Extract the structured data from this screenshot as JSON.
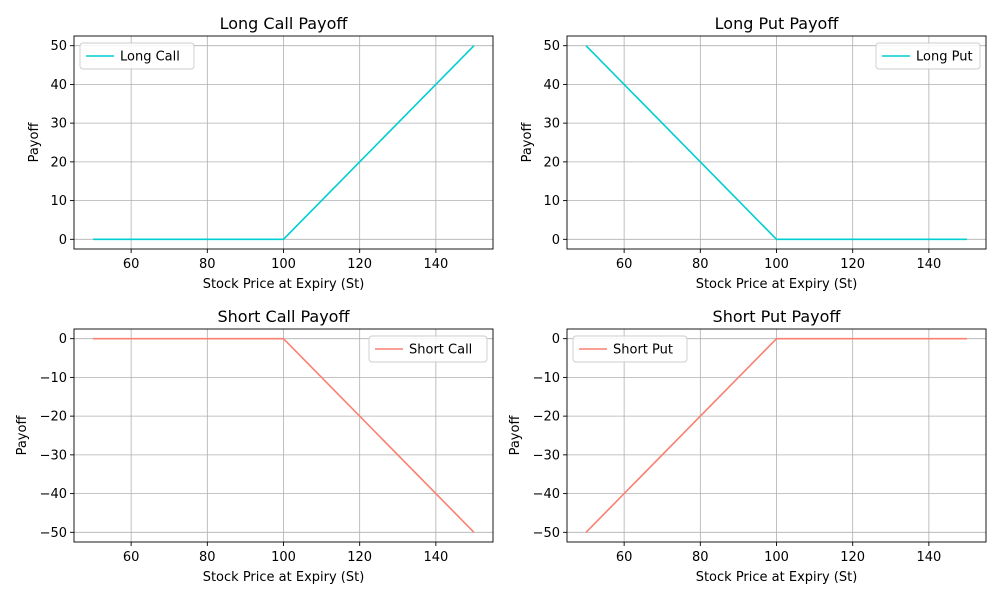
{
  "colors": {
    "long": "#00CED1",
    "short": "#FA8072",
    "grid": "#b0b0b0",
    "axes": "#000000"
  },
  "chart_data": [
    {
      "type": "line",
      "title": "Long Call Payoff",
      "xlabel": "Stock Price at Expiry (St)",
      "ylabel": "Payoff",
      "xlim": [
        45,
        155
      ],
      "ylim": [
        -2.5,
        52.5
      ],
      "xticks": [
        60,
        80,
        100,
        120,
        140
      ],
      "yticks": [
        0,
        10,
        20,
        30,
        40,
        50
      ],
      "grid": true,
      "legend_position": "upper left",
      "series": [
        {
          "name": "Long Call",
          "color": "#00CED1",
          "x": [
            50,
            100,
            150
          ],
          "y": [
            0,
            0,
            50
          ]
        }
      ]
    },
    {
      "type": "line",
      "title": "Long Put Payoff",
      "xlabel": "Stock Price at Expiry (St)",
      "ylabel": "Payoff",
      "xlim": [
        45,
        155
      ],
      "ylim": [
        -2.5,
        52.5
      ],
      "xticks": [
        60,
        80,
        100,
        120,
        140
      ],
      "yticks": [
        0,
        10,
        20,
        30,
        40,
        50
      ],
      "grid": true,
      "legend_position": "upper right",
      "series": [
        {
          "name": "Long Put",
          "color": "#00CED1",
          "x": [
            50,
            100,
            150
          ],
          "y": [
            50,
            0,
            0
          ]
        }
      ]
    },
    {
      "type": "line",
      "title": "Short Call Payoff",
      "xlabel": "Stock Price at Expiry (St)",
      "ylabel": "Payoff",
      "xlim": [
        45,
        155
      ],
      "ylim": [
        -52.5,
        2.5
      ],
      "xticks": [
        60,
        80,
        100,
        120,
        140
      ],
      "yticks": [
        0,
        -10,
        -20,
        -30,
        -40,
        -50
      ],
      "grid": true,
      "legend_position": "upper right",
      "series": [
        {
          "name": "Short Call",
          "color": "#FA8072",
          "x": [
            50,
            100,
            150
          ],
          "y": [
            0,
            0,
            -50
          ]
        }
      ]
    },
    {
      "type": "line",
      "title": "Short Put Payoff",
      "xlabel": "Stock Price at Expiry (St)",
      "ylabel": "Payoff",
      "xlim": [
        45,
        155
      ],
      "ylim": [
        -52.5,
        2.5
      ],
      "xticks": [
        60,
        80,
        100,
        120,
        140
      ],
      "yticks": [
        0,
        -10,
        -20,
        -30,
        -40,
        -50
      ],
      "grid": true,
      "legend_position": "upper left",
      "series": [
        {
          "name": "Short Put",
          "color": "#FA8072",
          "x": [
            50,
            100,
            150
          ],
          "y": [
            -50,
            0,
            0
          ]
        }
      ]
    }
  ]
}
